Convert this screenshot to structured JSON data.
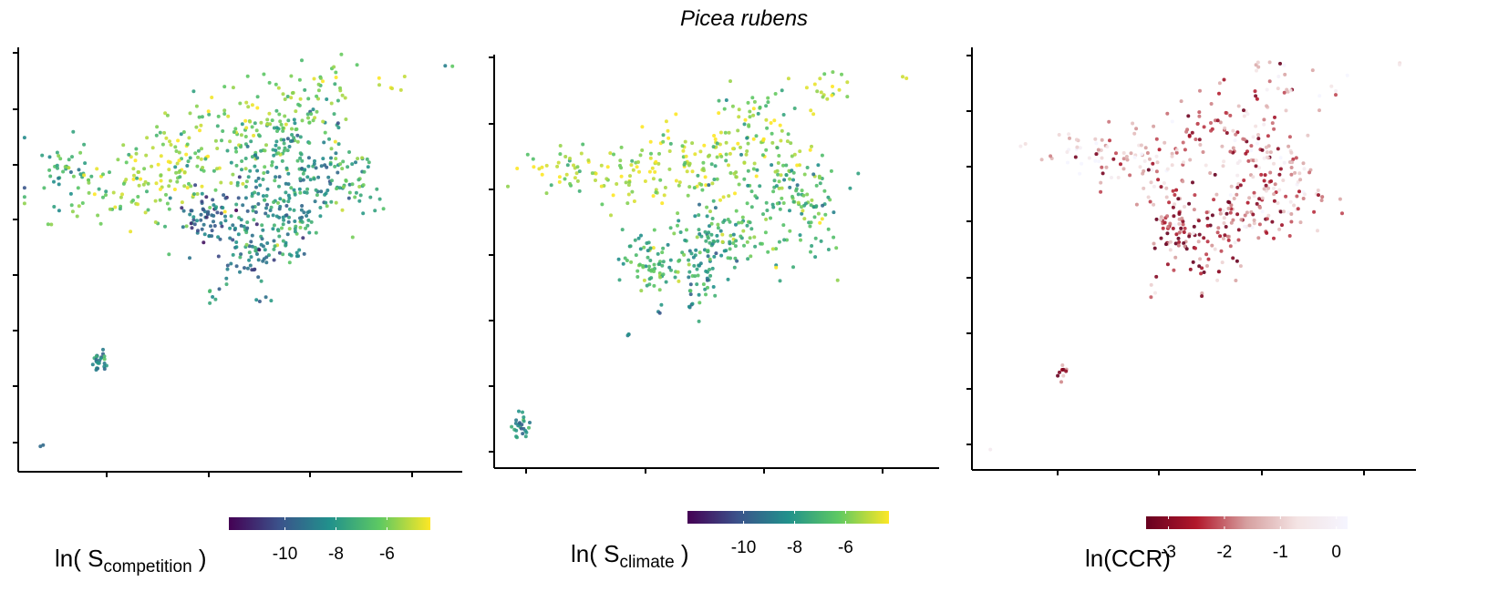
{
  "figure": {
    "title": "Picea rubens"
  },
  "chart_data": [
    {
      "type": "scatter",
      "panel": "left",
      "xlabel": "",
      "ylabel": "",
      "x_tick_count": 4,
      "y_tick_count": 8,
      "point_color": "viridis",
      "legend": {
        "title_main": "ln( S",
        "title_sub": "competition",
        "title_end": " )",
        "placement": "bottom",
        "range": [
          -12.2,
          -4.3
        ],
        "ticks": [
          -10,
          -8,
          -6
        ],
        "tick_labels": [
          "-10",
          "-8",
          "-6"
        ],
        "colormap": [
          "#440154",
          "#3b528b",
          "#21918c",
          "#5ec962",
          "#fde725"
        ]
      },
      "clusters": [
        {
          "cx": 0.1,
          "cy": 0.3,
          "sx": 0.05,
          "sy": 0.04,
          "n": 40,
          "v": -7.5
        },
        {
          "cx": 0.28,
          "cy": 0.35,
          "sx": 0.1,
          "sy": 0.05,
          "n": 80,
          "v": -5.8
        },
        {
          "cx": 0.33,
          "cy": 0.28,
          "sx": 0.06,
          "sy": 0.04,
          "n": 60,
          "v": -5.2
        },
        {
          "cx": 0.45,
          "cy": 0.2,
          "sx": 0.08,
          "sy": 0.05,
          "n": 80,
          "v": -6.2
        },
        {
          "cx": 0.57,
          "cy": 0.27,
          "sx": 0.06,
          "sy": 0.05,
          "n": 70,
          "v": -7.5
        },
        {
          "cx": 0.67,
          "cy": 0.3,
          "sx": 0.05,
          "sy": 0.06,
          "n": 80,
          "v": -8.2
        },
        {
          "cx": 0.75,
          "cy": 0.33,
          "sx": 0.04,
          "sy": 0.04,
          "n": 40,
          "v": -6.8
        },
        {
          "cx": 0.62,
          "cy": 0.17,
          "sx": 0.05,
          "sy": 0.04,
          "n": 50,
          "v": -6.5
        },
        {
          "cx": 0.42,
          "cy": 0.4,
          "sx": 0.03,
          "sy": 0.04,
          "n": 60,
          "v": -9.8
        },
        {
          "cx": 0.55,
          "cy": 0.4,
          "sx": 0.06,
          "sy": 0.05,
          "n": 70,
          "v": -8.6
        },
        {
          "cx": 0.52,
          "cy": 0.5,
          "sx": 0.04,
          "sy": 0.05,
          "n": 60,
          "v": -9.0
        },
        {
          "cx": 0.6,
          "cy": 0.42,
          "sx": 0.04,
          "sy": 0.05,
          "n": 50,
          "v": -7.8
        },
        {
          "cx": 0.7,
          "cy": 0.08,
          "sx": 0.03,
          "sy": 0.03,
          "n": 25,
          "v": -6.0
        },
        {
          "cx": 0.85,
          "cy": 0.09,
          "sx": 0.02,
          "sy": 0.02,
          "n": 6,
          "v": -5.0
        },
        {
          "cx": 0.58,
          "cy": 0.1,
          "sx": 0.04,
          "sy": 0.03,
          "n": 10,
          "v": -6.0
        },
        {
          "cx": 0.18,
          "cy": 0.74,
          "sx": 0.008,
          "sy": 0.012,
          "n": 25,
          "v": -8.3
        },
        {
          "cx": 0.045,
          "cy": 0.94,
          "sx": 0.003,
          "sy": 0.004,
          "n": 2,
          "v": -9.0
        },
        {
          "cx": 0.97,
          "cy": 0.04,
          "sx": 0.005,
          "sy": 0.004,
          "n": 2,
          "v": -7.0
        },
        {
          "cx": 0.44,
          "cy": 0.58,
          "sx": 0.01,
          "sy": 0.015,
          "n": 5,
          "v": -8.5
        }
      ]
    },
    {
      "type": "scatter",
      "panel": "center",
      "xlabel": "",
      "ylabel": "",
      "x_tick_count": 4,
      "y_tick_count": 7,
      "point_color": "viridis",
      "legend": {
        "title_main": "ln( S",
        "title_sub": "climate",
        "title_end": " )",
        "placement": "bottom",
        "range": [
          -12.2,
          -4.3
        ],
        "ticks": [
          -10,
          -8,
          -6
        ],
        "tick_labels": [
          "-10",
          "-8",
          "-6"
        ],
        "colormap": [
          "#440154",
          "#3b528b",
          "#21918c",
          "#5ec962",
          "#fde725"
        ]
      },
      "clusters": [
        {
          "cx": 0.15,
          "cy": 0.28,
          "sx": 0.05,
          "sy": 0.03,
          "n": 30,
          "v": -5.5
        },
        {
          "cx": 0.3,
          "cy": 0.3,
          "sx": 0.08,
          "sy": 0.04,
          "n": 60,
          "v": -5.0
        },
        {
          "cx": 0.42,
          "cy": 0.25,
          "sx": 0.06,
          "sy": 0.04,
          "n": 60,
          "v": -5.2
        },
        {
          "cx": 0.55,
          "cy": 0.25,
          "sx": 0.06,
          "sy": 0.05,
          "n": 70,
          "v": -5.6
        },
        {
          "cx": 0.65,
          "cy": 0.33,
          "sx": 0.05,
          "sy": 0.05,
          "n": 70,
          "v": -6.8
        },
        {
          "cx": 0.72,
          "cy": 0.38,
          "sx": 0.04,
          "sy": 0.05,
          "n": 50,
          "v": -7.2
        },
        {
          "cx": 0.6,
          "cy": 0.15,
          "sx": 0.05,
          "sy": 0.04,
          "n": 40,
          "v": -5.8
        },
        {
          "cx": 0.35,
          "cy": 0.5,
          "sx": 0.03,
          "sy": 0.04,
          "n": 70,
          "v": -7.0
        },
        {
          "cx": 0.47,
          "cy": 0.46,
          "sx": 0.04,
          "sy": 0.05,
          "n": 60,
          "v": -7.6
        },
        {
          "cx": 0.53,
          "cy": 0.45,
          "sx": 0.05,
          "sy": 0.04,
          "n": 60,
          "v": -6.8
        },
        {
          "cx": 0.45,
          "cy": 0.56,
          "sx": 0.02,
          "sy": 0.05,
          "n": 30,
          "v": -8.0
        },
        {
          "cx": 0.74,
          "cy": 0.1,
          "sx": 0.03,
          "sy": 0.03,
          "n": 20,
          "v": -5.2
        },
        {
          "cx": 0.92,
          "cy": 0.05,
          "sx": 0.005,
          "sy": 0.004,
          "n": 2,
          "v": -4.8
        },
        {
          "cx": 0.06,
          "cy": 0.9,
          "sx": 0.01,
          "sy": 0.015,
          "n": 25,
          "v": -7.8
        },
        {
          "cx": 0.3,
          "cy": 0.68,
          "sx": 0.004,
          "sy": 0.006,
          "n": 3,
          "v": -8.5
        },
        {
          "cx": 0.37,
          "cy": 0.62,
          "sx": 0.004,
          "sy": 0.004,
          "n": 2,
          "v": -9.5
        }
      ]
    },
    {
      "type": "scatter",
      "panel": "right",
      "xlabel": "",
      "ylabel": "",
      "x_tick_count": 4,
      "y_tick_count": 8,
      "point_color": "reds",
      "legend": {
        "title_main": "ln(CCR)",
        "title_sub": "",
        "title_end": "",
        "placement": "bottom",
        "range": [
          -3.4,
          0.2
        ],
        "ticks": [
          -3,
          -2,
          -1,
          0
        ],
        "tick_labels": [
          "-3",
          "-2",
          "-1",
          "0"
        ],
        "colormap": [
          "#67001f",
          "#b2182b",
          "#d6a0a0",
          "#f4e4e4",
          "#f5f5ff"
        ]
      },
      "clusters": [
        {
          "cx": 0.25,
          "cy": 0.25,
          "sx": 0.07,
          "sy": 0.03,
          "n": 40,
          "v": -0.8
        },
        {
          "cx": 0.4,
          "cy": 0.28,
          "sx": 0.06,
          "sy": 0.04,
          "n": 60,
          "v": -1.5
        },
        {
          "cx": 0.55,
          "cy": 0.2,
          "sx": 0.07,
          "sy": 0.05,
          "n": 70,
          "v": -1.7
        },
        {
          "cx": 0.67,
          "cy": 0.27,
          "sx": 0.05,
          "sy": 0.05,
          "n": 70,
          "v": -1.6
        },
        {
          "cx": 0.72,
          "cy": 0.35,
          "sx": 0.04,
          "sy": 0.05,
          "n": 40,
          "v": -1.2
        },
        {
          "cx": 0.45,
          "cy": 0.42,
          "sx": 0.03,
          "sy": 0.04,
          "n": 60,
          "v": -2.2
        },
        {
          "cx": 0.53,
          "cy": 0.46,
          "sx": 0.04,
          "sy": 0.05,
          "n": 60,
          "v": -2.3
        },
        {
          "cx": 0.6,
          "cy": 0.4,
          "sx": 0.05,
          "sy": 0.04,
          "n": 60,
          "v": -1.8
        },
        {
          "cx": 0.68,
          "cy": 0.1,
          "sx": 0.03,
          "sy": 0.03,
          "n": 20,
          "v": -1.4
        },
        {
          "cx": 0.8,
          "cy": 0.08,
          "sx": 0.02,
          "sy": 0.02,
          "n": 6,
          "v": -0.6
        },
        {
          "cx": 0.2,
          "cy": 0.77,
          "sx": 0.006,
          "sy": 0.01,
          "n": 10,
          "v": -2.6
        },
        {
          "cx": 0.96,
          "cy": 0.04,
          "sx": 0.005,
          "sy": 0.004,
          "n": 2,
          "v": -1.8
        },
        {
          "cx": 0.04,
          "cy": 0.95,
          "sx": 0.003,
          "sy": 0.003,
          "n": 1,
          "v": -0.3
        },
        {
          "cx": 0.4,
          "cy": 0.57,
          "sx": 0.01,
          "sy": 0.015,
          "n": 4,
          "v": -2.0
        }
      ]
    }
  ]
}
